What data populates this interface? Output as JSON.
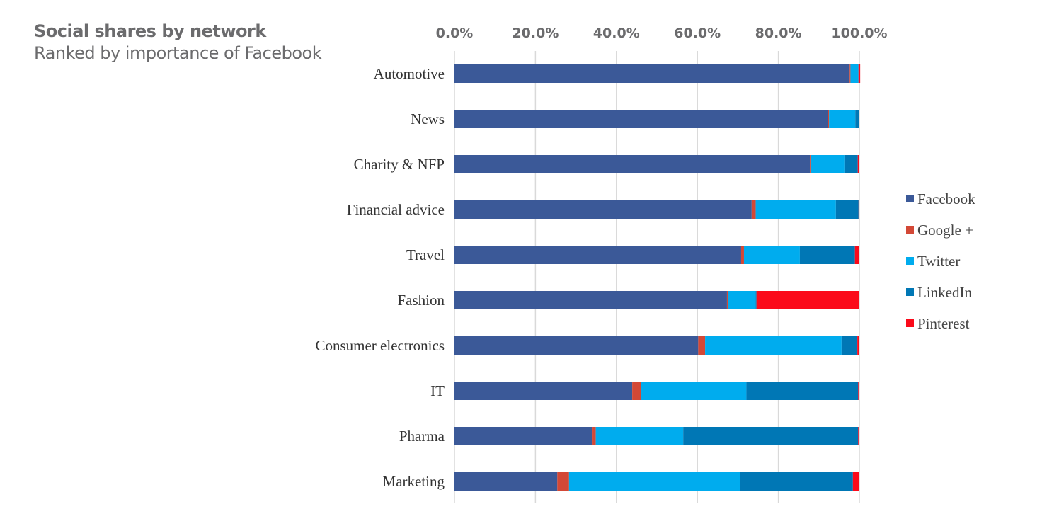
{
  "chart_data": {
    "type": "bar",
    "orientation": "horizontal",
    "stacked": "percent",
    "title": "Social shares by network",
    "subtitle": "Ranked by importance of Facebook",
    "xlabel": "",
    "ylabel": "",
    "xlim": [
      0,
      100
    ],
    "xticks": [
      "0.0%",
      "20.0%",
      "40.0%",
      "60.0%",
      "80.0%",
      "100.0%"
    ],
    "xtick_values": [
      0,
      20,
      40,
      60,
      80,
      100
    ],
    "grid": true,
    "legend_position": "right",
    "categories": [
      "Automotive",
      "News",
      "Charity & NFP",
      "Financial advice",
      "Travel",
      "Fashion",
      "Consumer electronics",
      "IT",
      "Pharma",
      "Marketing"
    ],
    "series": [
      {
        "name": "Facebook",
        "color": "#3b5998",
        "values": [
          97.6,
          92.3,
          87.8,
          73.4,
          70.8,
          67.3,
          60.2,
          43.9,
          34.1,
          25.4
        ]
      },
      {
        "name": "Google +",
        "color": "#d34836",
        "values": [
          0.2,
          0.2,
          0.3,
          1.0,
          0.7,
          0.3,
          1.7,
          2.2,
          0.8,
          2.9
        ]
      },
      {
        "name": "Twitter",
        "color": "#00acee",
        "values": [
          1.9,
          6.5,
          8.2,
          19.8,
          13.8,
          6.8,
          33.7,
          26.0,
          21.6,
          42.3
        ]
      },
      {
        "name": "LinkedIn",
        "color": "#0077b5",
        "values": [
          0.1,
          1.0,
          3.3,
          5.6,
          13.6,
          0.2,
          3.9,
          27.6,
          43.2,
          27.8
        ]
      },
      {
        "name": "Pinterest",
        "color": "#fb0a1a",
        "values": [
          0.4,
          0.0,
          0.4,
          0.2,
          1.1,
          25.4,
          0.5,
          0.3,
          0.3,
          1.6
        ]
      }
    ]
  }
}
